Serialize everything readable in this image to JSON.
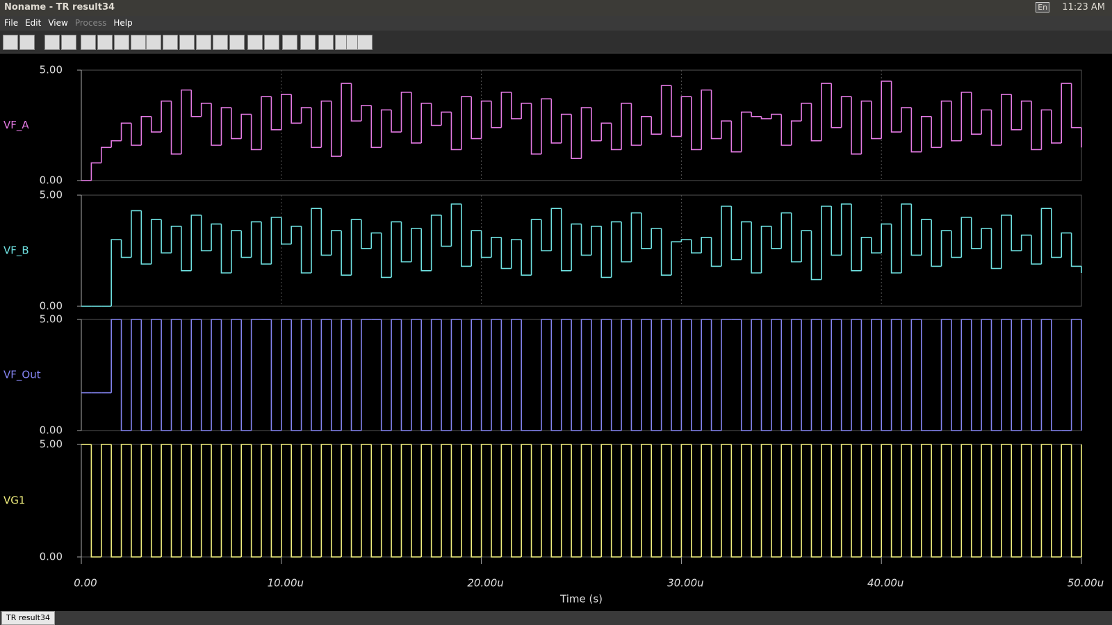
{
  "window": {
    "title": "Noname - TR result34"
  },
  "system_tray": {
    "keyboard": "En",
    "clock": "11:23 AM"
  },
  "menu": [
    "File",
    "Edit",
    "View",
    "Process",
    "Help"
  ],
  "tab": "TR result34",
  "chart_data": {
    "type": "line",
    "x_label": "Time (s)",
    "step": true,
    "grid": true,
    "xlim": [
      0,
      50
    ],
    "xticks": [
      {
        "value": 0,
        "label": "0.00"
      },
      {
        "value": 10,
        "label": "10.00u"
      },
      {
        "value": 20,
        "label": "20.00u"
      },
      {
        "value": 30,
        "label": "30.00u"
      },
      {
        "value": 40,
        "label": "40.00u"
      },
      {
        "value": 50,
        "label": "50.00u"
      }
    ],
    "ylim": [
      0,
      5
    ],
    "yticks": [
      {
        "value": 0,
        "label": "0.00"
      },
      {
        "value": 5,
        "label": "5.00"
      }
    ],
    "x": [
      0,
      0.5,
      1,
      1.5,
      2,
      2.5,
      3,
      3.5,
      4,
      4.5,
      5,
      5.5,
      6,
      6.5,
      7,
      7.5,
      8,
      8.5,
      9,
      9.5,
      10,
      10.5,
      11,
      11.5,
      12,
      12.5,
      13,
      13.5,
      14,
      14.5,
      15,
      15.5,
      16,
      16.5,
      17,
      17.5,
      18,
      18.5,
      19,
      19.5,
      20,
      20.5,
      21,
      21.5,
      22,
      22.5,
      23,
      23.5,
      24,
      24.5,
      25,
      25.5,
      26,
      26.5,
      27,
      27.5,
      28,
      28.5,
      29,
      29.5,
      30,
      30.5,
      31,
      31.5,
      32,
      32.5,
      33,
      33.5,
      34,
      34.5,
      35,
      35.5,
      36,
      36.5,
      37,
      37.5,
      38,
      38.5,
      39,
      39.5,
      40,
      40.5,
      41,
      41.5,
      42,
      42.5,
      43,
      43.5,
      44,
      44.5,
      45,
      45.5,
      46,
      46.5,
      47,
      47.5,
      48,
      48.5,
      49,
      49.5,
      50
    ],
    "series": [
      {
        "name": "VF_A",
        "color": "#e47ae4",
        "values": [
          0,
          0.8,
          1.5,
          1.8,
          2.6,
          1.6,
          2.9,
          2.2,
          3.6,
          1.2,
          4.1,
          2.9,
          3.5,
          1.6,
          3.3,
          1.9,
          3.0,
          1.4,
          3.8,
          2.3,
          3.9,
          2.6,
          3.3,
          1.5,
          3.6,
          1.1,
          4.4,
          2.7,
          3.4,
          1.5,
          3.2,
          2.2,
          4.0,
          1.7,
          3.5,
          2.5,
          3.1,
          1.4,
          3.8,
          1.9,
          3.6,
          2.4,
          4.0,
          2.8,
          3.5,
          1.2,
          3.7,
          1.7,
          3.0,
          1.0,
          3.3,
          1.8,
          2.6,
          1.4,
          3.5,
          1.6,
          2.9,
          2.1,
          4.3,
          2.0,
          3.8,
          1.4,
          4.1,
          1.9,
          2.7,
          1.3,
          3.1,
          2.9,
          2.8,
          3.0,
          1.6,
          2.7,
          3.5,
          1.8,
          4.4,
          2.4,
          3.8,
          1.2,
          3.6,
          1.9,
          4.5,
          2.2,
          3.3,
          1.3,
          2.9,
          1.5,
          3.6,
          1.8,
          4.0,
          2.1,
          3.2,
          1.6,
          3.9,
          2.3,
          3.6,
          1.4,
          3.2,
          1.7,
          4.4,
          2.4,
          1.5
        ]
      },
      {
        "name": "VF_B",
        "color": "#6fe3e3",
        "values": [
          0,
          0,
          0,
          3.0,
          2.2,
          4.3,
          1.9,
          3.9,
          2.4,
          3.6,
          1.6,
          4.1,
          2.5,
          3.7,
          1.5,
          3.4,
          2.2,
          3.8,
          1.9,
          4.0,
          2.8,
          3.6,
          1.5,
          4.4,
          2.3,
          3.4,
          1.4,
          3.9,
          2.6,
          3.3,
          1.3,
          3.8,
          2.0,
          3.5,
          1.6,
          4.1,
          2.7,
          4.6,
          1.8,
          3.4,
          2.2,
          3.1,
          1.7,
          3.0,
          1.4,
          3.9,
          2.5,
          4.4,
          1.6,
          3.7,
          2.3,
          3.6,
          1.3,
          3.8,
          2.0,
          4.2,
          2.6,
          3.5,
          1.4,
          2.9,
          3.0,
          2.4,
          3.1,
          1.8,
          4.5,
          2.1,
          3.8,
          1.5,
          3.6,
          2.6,
          4.2,
          2.0,
          3.4,
          1.2,
          4.5,
          2.3,
          4.6,
          1.6,
          3.1,
          2.4,
          3.7,
          1.5,
          4.6,
          2.3,
          3.9,
          1.8,
          3.4,
          2.2,
          4.0,
          2.6,
          3.5,
          1.7,
          4.1,
          2.5,
          3.2,
          1.9,
          4.4,
          2.2,
          3.3,
          1.8,
          1.5
        ]
      },
      {
        "name": "VF_Out",
        "color": "#8585f2",
        "values": [
          1.7,
          1.7,
          1.7,
          5,
          0,
          5,
          0,
          5,
          0,
          5,
          0,
          5,
          0,
          5,
          0,
          5,
          0,
          5,
          5,
          0,
          5,
          0,
          5,
          0,
          5,
          0,
          5,
          0,
          5,
          5,
          0,
          5,
          0,
          5,
          0,
          5,
          0,
          5,
          0,
          5,
          0,
          5,
          0,
          5,
          0,
          0,
          5,
          0,
          5,
          0,
          5,
          0,
          5,
          0,
          5,
          0,
          5,
          0,
          5,
          0,
          5,
          0,
          5,
          0,
          5,
          5,
          0,
          5,
          0,
          5,
          0,
          5,
          0,
          5,
          0,
          5,
          0,
          5,
          0,
          5,
          0,
          5,
          0,
          5,
          0,
          0,
          5,
          0,
          5,
          0,
          5,
          0,
          5,
          0,
          5,
          0,
          5,
          0,
          0,
          5,
          0
        ]
      },
      {
        "name": "VG1",
        "color": "#f2f07e",
        "values": [
          5,
          0,
          5,
          0,
          5,
          0,
          5,
          0,
          5,
          0,
          5,
          0,
          5,
          0,
          5,
          0,
          5,
          0,
          5,
          0,
          5,
          0,
          5,
          0,
          5,
          0,
          5,
          0,
          5,
          0,
          5,
          0,
          5,
          0,
          5,
          0,
          5,
          0,
          5,
          0,
          5,
          0,
          5,
          0,
          5,
          0,
          5,
          0,
          5,
          0,
          5,
          0,
          5,
          0,
          5,
          0,
          5,
          0,
          5,
          0,
          5,
          0,
          5,
          0,
          5,
          0,
          5,
          0,
          5,
          0,
          5,
          0,
          5,
          0,
          5,
          0,
          5,
          0,
          5,
          0,
          5,
          0,
          5,
          0,
          5,
          0,
          5,
          0,
          5,
          0,
          5,
          0,
          5,
          0,
          5,
          0,
          5,
          0,
          5,
          0,
          5
        ]
      }
    ]
  }
}
